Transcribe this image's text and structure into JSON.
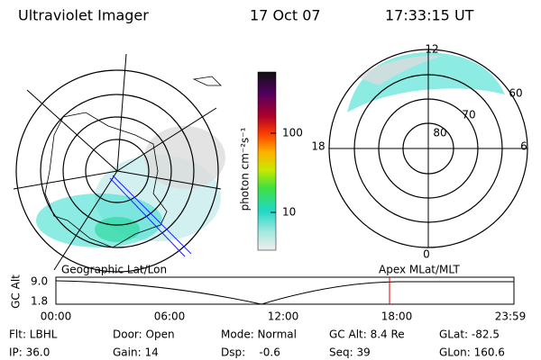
{
  "header": {
    "title": "Ultraviolet Imager",
    "date": "17 Oct 07",
    "time": "17:33:15 UT"
  },
  "colorbar": {
    "unit": "photon cm⁻²s⁻¹",
    "ticks": [
      "100",
      "10"
    ]
  },
  "right_map": {
    "lat_labels": [
      "60",
      "70",
      "80"
    ],
    "mlt_labels": [
      "12",
      "18",
      "6",
      "0"
    ]
  },
  "altitude_plot": {
    "left_title": "Geographic Lat/Lon",
    "right_title": "Apex MLat/MLT",
    "axis_label": "GC Alt",
    "y_labels": [
      "9.0",
      "1.8"
    ],
    "x_labels": [
      "00:00",
      "06:00",
      "12:00",
      "18:00",
      "23:59"
    ]
  },
  "footer": {
    "rows": [
      [
        "Flt: LBHL",
        "Door: Open",
        "Mode: Normal",
        "GC Alt: 8.4 Re",
        "GLat: -82.5"
      ],
      [
        "IP: 36.0",
        "Gain: 14",
        "Dsp:    -0.6",
        "Seq: 39",
        "GLon: 160.6"
      ]
    ]
  }
}
